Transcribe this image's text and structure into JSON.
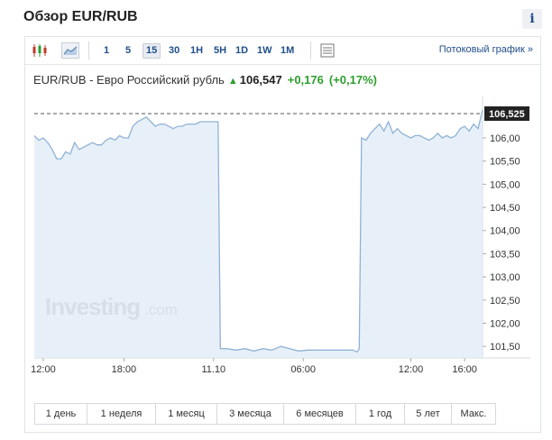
{
  "header": {
    "title": "Обзор EUR/RUB",
    "info_label": "i"
  },
  "toolbar": {
    "timeframes": [
      {
        "label": "1",
        "active": false
      },
      {
        "label": "5",
        "active": false
      },
      {
        "label": "15",
        "active": true
      },
      {
        "label": "30",
        "active": false
      },
      {
        "label": "1H",
        "active": false
      },
      {
        "label": "5H",
        "active": false
      },
      {
        "label": "1D",
        "active": false
      },
      {
        "label": "1W",
        "active": false
      },
      {
        "label": "1M",
        "active": false
      }
    ],
    "stream_link": "Потоковый график »"
  },
  "quote": {
    "name": "EUR/RUB - Евро Российский рубль",
    "price": "106,547",
    "change": "+0,176",
    "change_pct": "(+0,17%)"
  },
  "watermark": {
    "brand": "Investing",
    "suffix": ".com"
  },
  "colors": {
    "line": "#8fb2d6",
    "fill": "#e3edf7",
    "accent": "#1f4e8c",
    "up": "#2e9e2e"
  },
  "chart_data": {
    "type": "area",
    "title": "",
    "xlabel": "",
    "ylabel": "",
    "ylim": [
      101.25,
      106.7
    ],
    "y_ticks": [
      "106,00",
      "105,50",
      "105,00",
      "104,50",
      "104,00",
      "103,50",
      "103,00",
      "102,50",
      "102,00",
      "101,50"
    ],
    "y_tick_values": [
      106.0,
      105.5,
      105.0,
      104.5,
      104.0,
      103.5,
      103.0,
      102.5,
      102.0,
      101.5
    ],
    "x_ticks": [
      "12:00",
      "18:00",
      "11.10",
      "06:00",
      "12:00",
      "16:00"
    ],
    "x_tick_values": [
      2,
      20,
      40,
      60,
      84,
      96
    ],
    "xlim": [
      0,
      100
    ],
    "last_value": 106.525,
    "last_label": "106,525",
    "series": [
      {
        "values": [
          [
            0,
            106.05
          ],
          [
            1,
            105.95
          ],
          [
            2,
            106.0
          ],
          [
            3,
            105.9
          ],
          [
            4,
            105.75
          ],
          [
            5,
            105.55
          ],
          [
            6,
            105.55
          ],
          [
            7,
            105.7
          ],
          [
            8,
            105.65
          ],
          [
            9,
            105.9
          ],
          [
            10,
            105.75
          ],
          [
            11,
            105.8
          ],
          [
            12,
            105.85
          ],
          [
            13,
            105.9
          ],
          [
            14,
            105.85
          ],
          [
            15,
            105.85
          ],
          [
            16,
            105.95
          ],
          [
            17,
            106.0
          ],
          [
            18,
            105.95
          ],
          [
            19,
            106.05
          ],
          [
            20,
            106.0
          ],
          [
            21,
            106.0
          ],
          [
            22,
            106.25
          ],
          [
            23,
            106.35
          ],
          [
            24,
            106.4
          ],
          [
            25,
            106.45
          ],
          [
            26,
            106.35
          ],
          [
            27,
            106.25
          ],
          [
            28,
            106.3
          ],
          [
            29,
            106.3
          ],
          [
            30,
            106.25
          ],
          [
            31,
            106.2
          ],
          [
            32,
            106.25
          ],
          [
            33,
            106.25
          ],
          [
            34,
            106.3
          ],
          [
            35,
            106.3
          ],
          [
            36,
            106.3
          ],
          [
            37,
            106.35
          ],
          [
            38,
            106.35
          ],
          [
            39,
            106.35
          ],
          [
            40,
            106.35
          ],
          [
            41,
            106.35
          ],
          [
            41.5,
            101.45
          ],
          [
            43,
            101.45
          ],
          [
            45,
            101.42
          ],
          [
            47,
            101.45
          ],
          [
            49,
            101.4
          ],
          [
            51,
            101.45
          ],
          [
            53,
            101.42
          ],
          [
            55,
            101.5
          ],
          [
            57,
            101.45
          ],
          [
            59,
            101.4
          ],
          [
            61,
            101.42
          ],
          [
            63,
            101.42
          ],
          [
            65,
            101.42
          ],
          [
            67,
            101.42
          ],
          [
            69,
            101.42
          ],
          [
            71,
            101.42
          ],
          [
            72,
            101.38
          ],
          [
            72.5,
            101.45
          ],
          [
            73,
            106.0
          ],
          [
            74,
            105.95
          ],
          [
            75,
            106.1
          ],
          [
            76,
            106.2
          ],
          [
            77,
            106.3
          ],
          [
            78,
            106.15
          ],
          [
            79,
            106.35
          ],
          [
            80,
            106.1
          ],
          [
            81,
            106.2
          ],
          [
            82,
            106.1
          ],
          [
            83,
            106.05
          ],
          [
            84,
            106.0
          ],
          [
            85,
            106.05
          ],
          [
            86,
            106.05
          ],
          [
            87,
            106.0
          ],
          [
            88,
            105.95
          ],
          [
            89,
            106.0
          ],
          [
            90,
            106.1
          ],
          [
            91,
            106.0
          ],
          [
            92,
            106.05
          ],
          [
            93,
            106.0
          ],
          [
            94,
            106.05
          ],
          [
            95,
            106.2
          ],
          [
            96,
            106.25
          ],
          [
            97,
            106.15
          ],
          [
            98,
            106.3
          ],
          [
            99,
            106.2
          ],
          [
            100,
            106.6
          ]
        ]
      }
    ]
  },
  "periods": [
    {
      "label": "1 день",
      "w": 58
    },
    {
      "label": "1 неделя",
      "w": 76
    },
    {
      "label": "1 месяц",
      "w": 68
    },
    {
      "label": "3 месяца",
      "w": 74
    },
    {
      "label": "6 месяцев",
      "w": 80
    },
    {
      "label": "1 год",
      "w": 54
    },
    {
      "label": "5 лет",
      "w": 52
    },
    {
      "label": "Макс.",
      "w": 48
    }
  ]
}
